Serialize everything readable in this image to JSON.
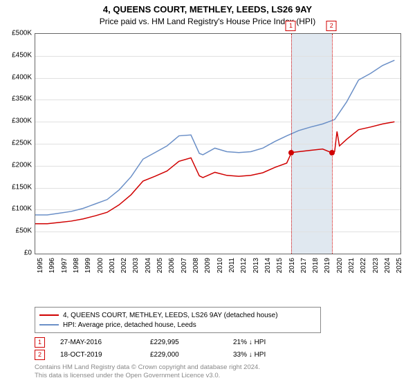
{
  "title": "4, QUEENS COURT, METHLEY, LEEDS, LS26 9AY",
  "subtitle": "Price paid vs. HM Land Registry's House Price Index (HPI)",
  "chart": {
    "type": "line",
    "xlim": [
      1995,
      2025.5
    ],
    "ylim": [
      0,
      500000
    ],
    "ytick_step": 50000,
    "yticks_labels": [
      "£0",
      "£50K",
      "£100K",
      "£150K",
      "£200K",
      "£250K",
      "£300K",
      "£350K",
      "£400K",
      "£450K",
      "£500K"
    ],
    "xticks": [
      1995,
      1996,
      1997,
      1998,
      1999,
      2000,
      2001,
      2002,
      2003,
      2004,
      2005,
      2006,
      2007,
      2008,
      2009,
      2010,
      2011,
      2012,
      2013,
      2014,
      2015,
      2016,
      2017,
      2018,
      2019,
      2020,
      2021,
      2022,
      2023,
      2024,
      2025
    ],
    "background_color": "#ffffff",
    "grid_color": "#e0e0e0",
    "border_color": "#666666",
    "highlight_band": {
      "xstart": 2016.4,
      "xend": 2019.8,
      "color": "#e0e8f0"
    },
    "series": [
      {
        "name": "hpi",
        "color": "#6a8fc7",
        "width": 1.5,
        "data": [
          [
            1995,
            88000
          ],
          [
            1996,
            88000
          ],
          [
            1997,
            92000
          ],
          [
            1998,
            96000
          ],
          [
            1999,
            103000
          ],
          [
            2000,
            113000
          ],
          [
            2001,
            123000
          ],
          [
            2002,
            145000
          ],
          [
            2003,
            175000
          ],
          [
            2004,
            215000
          ],
          [
            2005,
            230000
          ],
          [
            2006,
            245000
          ],
          [
            2007,
            268000
          ],
          [
            2008,
            270000
          ],
          [
            2008.7,
            228000
          ],
          [
            2009,
            225000
          ],
          [
            2010,
            240000
          ],
          [
            2011,
            232000
          ],
          [
            2012,
            230000
          ],
          [
            2013,
            232000
          ],
          [
            2014,
            240000
          ],
          [
            2015,
            255000
          ],
          [
            2016,
            268000
          ],
          [
            2017,
            280000
          ],
          [
            2018,
            288000
          ],
          [
            2019,
            295000
          ],
          [
            2020,
            305000
          ],
          [
            2021,
            345000
          ],
          [
            2022,
            395000
          ],
          [
            2023,
            410000
          ],
          [
            2024,
            428000
          ],
          [
            2025,
            440000
          ]
        ]
      },
      {
        "name": "property",
        "color": "#d00000",
        "width": 1.5,
        "data": [
          [
            1995,
            68000
          ],
          [
            1996,
            68000
          ],
          [
            1997,
            71000
          ],
          [
            1998,
            74000
          ],
          [
            1999,
            79000
          ],
          [
            2000,
            86000
          ],
          [
            2001,
            94000
          ],
          [
            2002,
            111000
          ],
          [
            2003,
            134000
          ],
          [
            2004,
            165000
          ],
          [
            2005,
            176000
          ],
          [
            2006,
            188000
          ],
          [
            2007,
            210000
          ],
          [
            2008,
            218000
          ],
          [
            2008.7,
            177000
          ],
          [
            2009,
            173000
          ],
          [
            2010,
            185000
          ],
          [
            2011,
            178000
          ],
          [
            2012,
            176000
          ],
          [
            2013,
            178000
          ],
          [
            2014,
            184000
          ],
          [
            2015,
            196000
          ],
          [
            2016,
            206000
          ],
          [
            2016.4,
            230000
          ],
          [
            2017,
            232000
          ],
          [
            2018,
            235000
          ],
          [
            2019,
            238000
          ],
          [
            2019.8,
            229000
          ],
          [
            2020,
            232000
          ],
          [
            2020.2,
            278000
          ],
          [
            2020.4,
            245000
          ],
          [
            2021,
            260000
          ],
          [
            2022,
            282000
          ],
          [
            2023,
            288000
          ],
          [
            2024,
            295000
          ],
          [
            2025,
            300000
          ]
        ]
      }
    ],
    "sale_markers": [
      {
        "label": "1",
        "x": 2016.4,
        "y": 229995
      },
      {
        "label": "2",
        "x": 2019.8,
        "y": 229000
      }
    ]
  },
  "legend": {
    "items": [
      {
        "color": "#d00000",
        "label": "4, QUEENS COURT, METHLEY, LEEDS, LS26 9AY (detached house)"
      },
      {
        "color": "#6a8fc7",
        "label": "HPI: Average price, detached house, Leeds"
      }
    ]
  },
  "events": [
    {
      "marker": "1",
      "date": "27-MAY-2016",
      "price": "£229,995",
      "delta": "21% ↓ HPI"
    },
    {
      "marker": "2",
      "date": "18-OCT-2019",
      "price": "£229,000",
      "delta": "33% ↓ HPI"
    }
  ],
  "footer": {
    "line1": "Contains HM Land Registry data © Crown copyright and database right 2024.",
    "line2": "This data is licensed under the Open Government Licence v3.0."
  }
}
